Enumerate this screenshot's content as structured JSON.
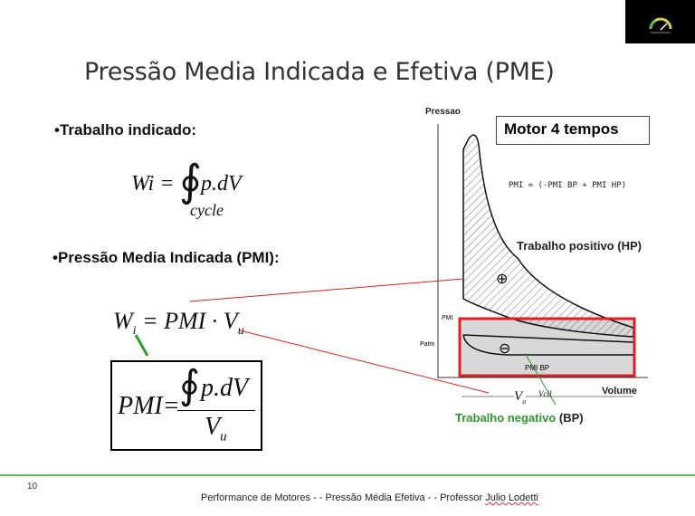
{
  "slide": {
    "title": "Pressão Media Indicada  e Efetiva (PME)",
    "bullet1": "•Trabalho indicado:",
    "formula1": {
      "lhs": "Wi =",
      "rhs": "p.dV",
      "subscript": "cycle"
    },
    "bullet2": "•Pressão Media Indicada (PMI):",
    "formula2": {
      "lhs": "W",
      "lhs_sub": "i",
      "rhs": "= PMI · V",
      "rhs_sub": "u"
    },
    "formula3": {
      "lhs": "PMI=",
      "numerator": "p.dV",
      "denominator": "V",
      "denominator_sub": "u"
    },
    "page_number": "10",
    "footer_text": "Performance de Motores  - - Pressão Média Efetiva - - Professor ",
    "footer_name": "Julio Lodetti"
  },
  "diagram": {
    "y_axis_label": "Pressao",
    "x_axis_label": "Volume",
    "box_title": "Motor 4 tempos",
    "formula_note": "PMI = (-PMI BP + PMI HP)",
    "positive_label": "Trabalho positivo (HP)",
    "negative_label_green": "Trabalho negativo",
    "negative_label_suffix": " (BP)",
    "pmi_tick": "PMI",
    "patm_tick": "Patm",
    "pmi_bp": "PMI BP",
    "vu": "V",
    "vu_sub": "u",
    "vcil": "Vcil",
    "plus": "⊕",
    "minus": "⊖",
    "colors": {
      "highlight": "#e02020",
      "green": "#2e9a2e",
      "accent_line": "#6fae5c"
    }
  },
  "logo": {
    "icon": "speedometer-logo"
  }
}
